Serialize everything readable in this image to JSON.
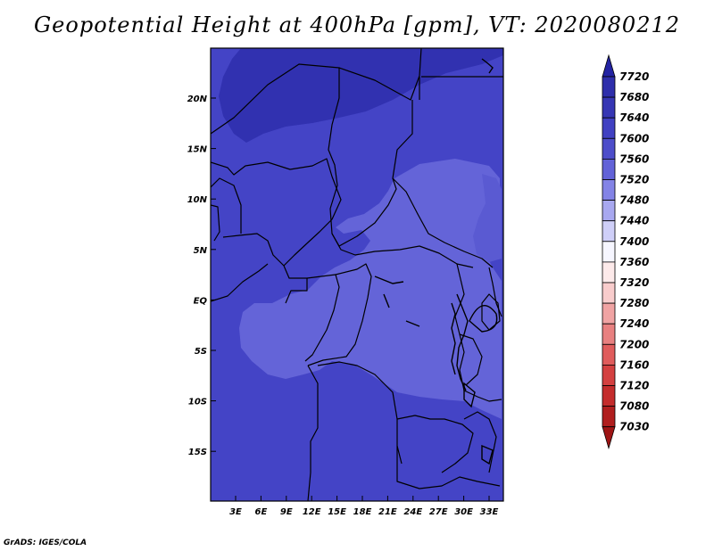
{
  "title": "Geopotential Height at 400hPa [gpm], VT: 2020080212",
  "credit": "GrADS: IGES/COLA",
  "lat_labels": [
    "20N",
    "15N",
    "10N",
    "5N",
    "EQ",
    "5S",
    "10S",
    "15S"
  ],
  "lon_labels": [
    "3E",
    "6E",
    "9E",
    "12E",
    "15E",
    "18E",
    "21E",
    "24E",
    "27E",
    "30E",
    "33E"
  ],
  "colorbar": {
    "levels": [
      "7720",
      "7680",
      "7640",
      "7600",
      "7560",
      "7520",
      "7480",
      "7440",
      "7400",
      "7360",
      "7320",
      "7280",
      "7240",
      "7200",
      "7160",
      "7120",
      "7080",
      "7030"
    ],
    "colors": [
      "#2323a3",
      "#2e2eab",
      "#3636b4",
      "#4040c2",
      "#4d4dca",
      "#6262d8",
      "#8383e6",
      "#a8a8f0",
      "#cfcff8",
      "#f6f6ff",
      "#fdeaea",
      "#f8cccc",
      "#f0a3a3",
      "#e88080",
      "#e05c5c",
      "#d44040",
      "#c42c2c",
      "#b01e1e",
      "#9e1414"
    ]
  },
  "map_colors": {
    "base": "#4444c6",
    "north_high": "#3131b0",
    "low_center": "#6464d8",
    "low_east": "#5a5ad2"
  }
}
